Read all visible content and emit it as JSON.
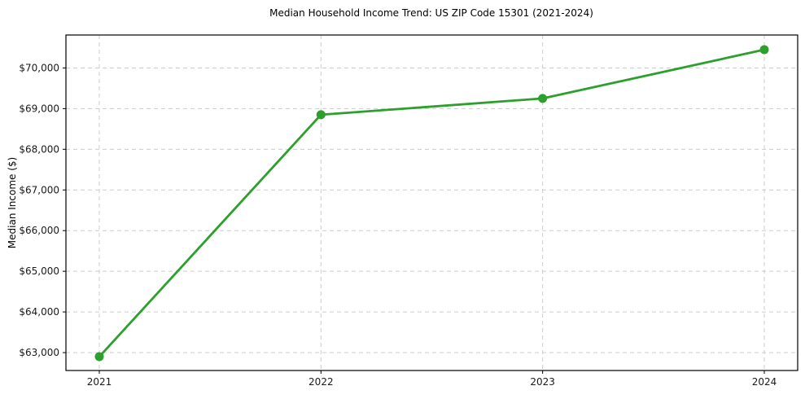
{
  "chart_data": {
    "type": "line",
    "title": "Median Household Income Trend: US ZIP Code 15301 (2021-2024)",
    "xlabel": "",
    "ylabel": "Median Income ($)",
    "categories": [
      "2021",
      "2022",
      "2023",
      "2024"
    ],
    "values": [
      62900,
      68850,
      69250,
      70450
    ],
    "y_ticks": [
      63000,
      64000,
      65000,
      66000,
      67000,
      68000,
      69000,
      70000
    ],
    "y_tick_labels": [
      "$63,000",
      "$64,000",
      "$65,000",
      "$66,000",
      "$67,000",
      "$68,000",
      "$69,000",
      "$70,000"
    ],
    "ylim": [
      62560,
      70810
    ],
    "grid": true,
    "grid_line_style": "dashed",
    "legend_position": "none",
    "line_color": "#2ca02c",
    "marker": "circle",
    "marker_color": "#2ca02c",
    "grid_color": "#cccccc",
    "spine_color": "#000000",
    "background_color": "#ffffff"
  }
}
